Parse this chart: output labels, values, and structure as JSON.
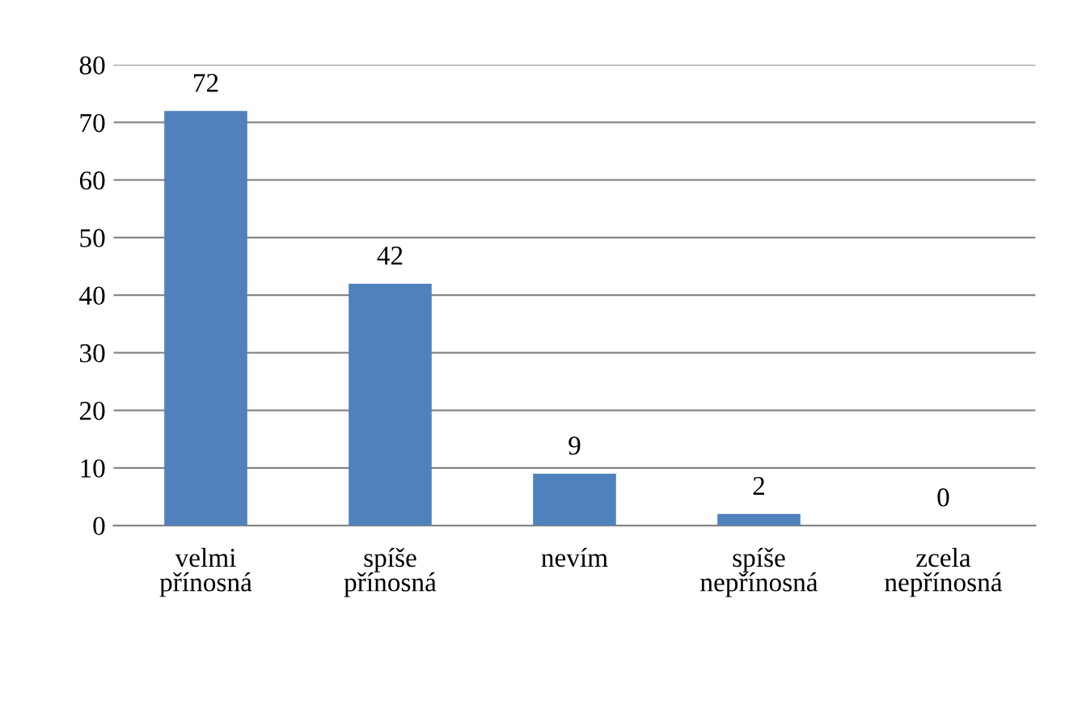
{
  "chart_data": {
    "type": "bar",
    "categories": [
      "velmi\npřínosná",
      "spíše\npřínosná",
      "nevím",
      "spíše\nnepřínosná",
      "zcela\nnepřínosná"
    ],
    "values": [
      72,
      42,
      9,
      2,
      0
    ],
    "color": "#4f81bd",
    "ylim": [
      0,
      80
    ],
    "yticks": [
      0,
      10,
      20,
      30,
      40,
      50,
      60,
      70,
      80
    ],
    "grid": "y",
    "data_labels": true,
    "legend": false
  }
}
